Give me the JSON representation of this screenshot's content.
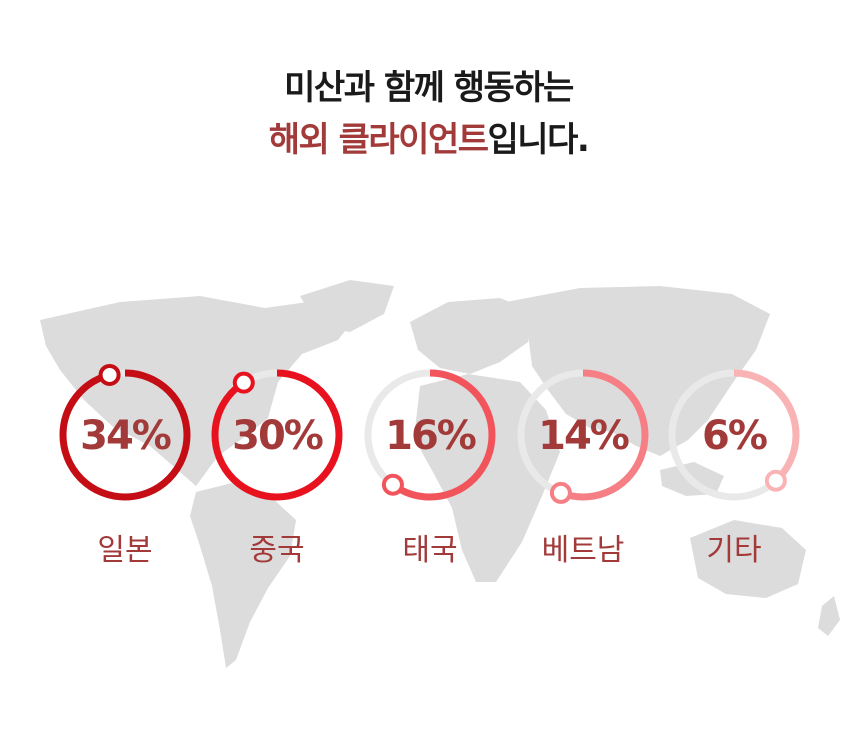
{
  "heading": {
    "line1": "미산과 함께 행동하는",
    "line2_highlight": "해외 클라이언트",
    "line2_rest": "입니다."
  },
  "colors": {
    "highlight": "#a33a3a",
    "track": "#e9e9e9",
    "map": "#d9d9d9",
    "value_text": "#a33a3a",
    "label_text": "#a33a3a"
  },
  "chart_data": {
    "type": "pie",
    "style": "donut-progress-rings",
    "categories": [
      "일본",
      "중국",
      "태국",
      "베트남",
      "기타"
    ],
    "values": [
      34,
      30,
      16,
      14,
      6
    ],
    "value_labels": [
      "34%",
      "30%",
      "16%",
      "14%",
      "6%"
    ],
    "unit": "%",
    "ring_colors": [
      "#c40d14",
      "#e8121f",
      "#f2545c",
      "#f57f84",
      "#f9b3b5"
    ]
  }
}
